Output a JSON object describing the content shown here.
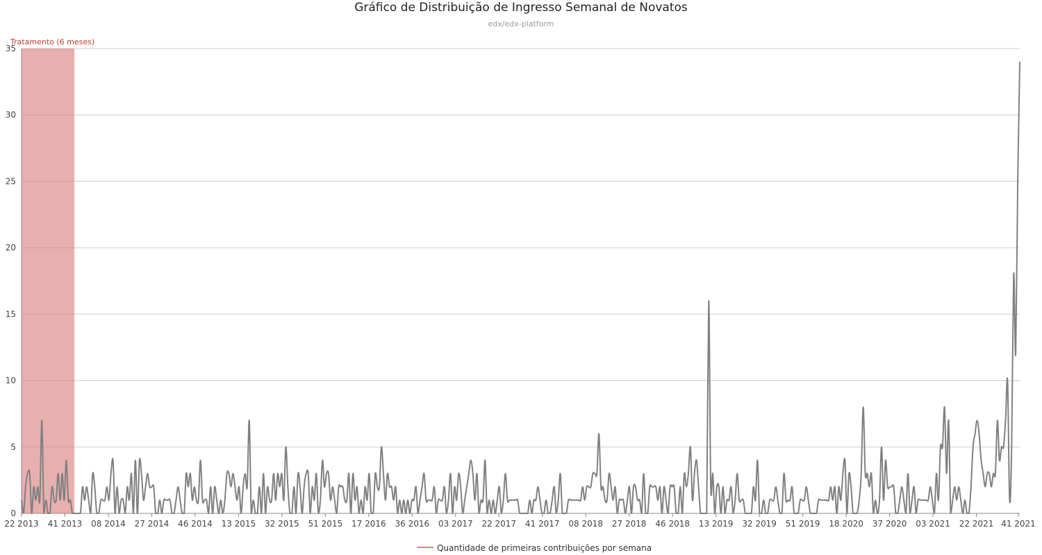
{
  "chart_data": {
    "type": "line",
    "title": "Gráfico de Distribuição de Ingresso Semanal de Novatos",
    "subtitle": "edx/edx-platform",
    "ylim": [
      0,
      35
    ],
    "yticks": [
      0,
      5,
      10,
      15,
      20,
      25,
      30,
      35
    ],
    "grid": true,
    "legend_placement": "bottom-center",
    "x_start_label": "22 2013",
    "x_end_label": "41 2021",
    "xtick_labels": [
      "22 2013",
      "41 2013",
      "08 2014",
      "27 2014",
      "46 2014",
      "13 2015",
      "32 2015",
      "51 2015",
      "17 2016",
      "36 2016",
      "03 2017",
      "22 2017",
      "41 2017",
      "08 2018",
      "27 2018",
      "46 2018",
      "13 2019",
      "32 2019",
      "51 2019",
      "18 2020",
      "37 2020",
      "03 2021",
      "22 2021",
      "41 2021"
    ],
    "band": {
      "label": "Tratamento (6 meses)",
      "start_label": "22 2013",
      "end_label": "48 2013",
      "color": "#d97a7a"
    },
    "series": [
      {
        "name": "Quantidade de primeiras contribuições por semana",
        "color": "#808080",
        "legend_color": "#e08080",
        "values": [
          1,
          0,
          2,
          3,
          3,
          0,
          2,
          1,
          2,
          1,
          7,
          0,
          1,
          0,
          0,
          2,
          1,
          1,
          3,
          1,
          3,
          1,
          4,
          1,
          1,
          0,
          0,
          0,
          0,
          0,
          2,
          1,
          2,
          1,
          0,
          3,
          2,
          0,
          0,
          1,
          1,
          1,
          2,
          1,
          3,
          4,
          0,
          2,
          0,
          1,
          1,
          0,
          2,
          1,
          3,
          0,
          4,
          0,
          4,
          3,
          1,
          2,
          3,
          2,
          2,
          2,
          0,
          0,
          1,
          0,
          1,
          1,
          1,
          1,
          0,
          0,
          1,
          2,
          1,
          0,
          0,
          3,
          2,
          3,
          1,
          2,
          1,
          1,
          4,
          1,
          1,
          1,
          0,
          2,
          0,
          2,
          1,
          0,
          1,
          0,
          1,
          3,
          3,
          2,
          3,
          2,
          1,
          2,
          0,
          2,
          3,
          2,
          7,
          0,
          1,
          0,
          0,
          2,
          0,
          3,
          0,
          2,
          1,
          1,
          3,
          1,
          3,
          2,
          3,
          1,
          5,
          2,
          0,
          0,
          2,
          0,
          3,
          2,
          0,
          2,
          3,
          3,
          0,
          2,
          1,
          3,
          0,
          1,
          4,
          2,
          3,
          3,
          1,
          2,
          1,
          0,
          2,
          2,
          2,
          1,
          1,
          3,
          0,
          3,
          1,
          2,
          0,
          1,
          0,
          2,
          1,
          3,
          0,
          0,
          3,
          2,
          2,
          5,
          3,
          1,
          3,
          2,
          2,
          1,
          2,
          0,
          1,
          0,
          1,
          0,
          1,
          0,
          1,
          1,
          2,
          0,
          1,
          2,
          3,
          1,
          1,
          1,
          1,
          2,
          0,
          1,
          1,
          1,
          2,
          0,
          1,
          3,
          0,
          2,
          1,
          3,
          2,
          0,
          1,
          2,
          3,
          4,
          3,
          1,
          3,
          0,
          1,
          1,
          4,
          0,
          1,
          0,
          1,
          0,
          1,
          2,
          0,
          1,
          3,
          1,
          1,
          1,
          1,
          1,
          1,
          0,
          0,
          0,
          0,
          0,
          1,
          0,
          1,
          1,
          2,
          1,
          0,
          0,
          1,
          0,
          0,
          1,
          2,
          0,
          1,
          3,
          0,
          0,
          0,
          1,
          1,
          1,
          1,
          1,
          1,
          1,
          2,
          1,
          2,
          2,
          2,
          3,
          3,
          3,
          6,
          2,
          2,
          1,
          1,
          3,
          2,
          1,
          2,
          0,
          1,
          1,
          1,
          0,
          1,
          2,
          0,
          2,
          2,
          1,
          1,
          0,
          3,
          0,
          0,
          2,
          2,
          2,
          2,
          1,
          2,
          0,
          2,
          1,
          0,
          2,
          2,
          2,
          0,
          0,
          2,
          0,
          3,
          2,
          3,
          5,
          1,
          3,
          4,
          2,
          0,
          0,
          0,
          0,
          16,
          2,
          3,
          0,
          2,
          2,
          0,
          2,
          0,
          1,
          1,
          2,
          0,
          1,
          3,
          1,
          1,
          1,
          0,
          0,
          0,
          0,
          2,
          1,
          4,
          0,
          0,
          1,
          0,
          0,
          1,
          1,
          1,
          2,
          1,
          0,
          0,
          3,
          1,
          1,
          1,
          2,
          0,
          0,
          0,
          1,
          1,
          1,
          2,
          1,
          0,
          0,
          0,
          0,
          1,
          1,
          1,
          1,
          1,
          1,
          2,
          1,
          2,
          0,
          2,
          1,
          3,
          4,
          0,
          3,
          2,
          0,
          0,
          0,
          1,
          3,
          8,
          3,
          3,
          2,
          3,
          0,
          1,
          0,
          1,
          5,
          1,
          4,
          2,
          2,
          2,
          2,
          0,
          0,
          1,
          2,
          1,
          0,
          3,
          0,
          1,
          2,
          0,
          1,
          1,
          1,
          1,
          1,
          1,
          2,
          1,
          0,
          3,
          1,
          5,
          5,
          8,
          3,
          7,
          0,
          1,
          2,
          1,
          2,
          1,
          0,
          1,
          0,
          0,
          2,
          5,
          6,
          7,
          6,
          4,
          3,
          2,
          3,
          3,
          2,
          3,
          3,
          7,
          4,
          5,
          5,
          7,
          10,
          1,
          5,
          18,
          12,
          25,
          34
        ]
      }
    ]
  }
}
